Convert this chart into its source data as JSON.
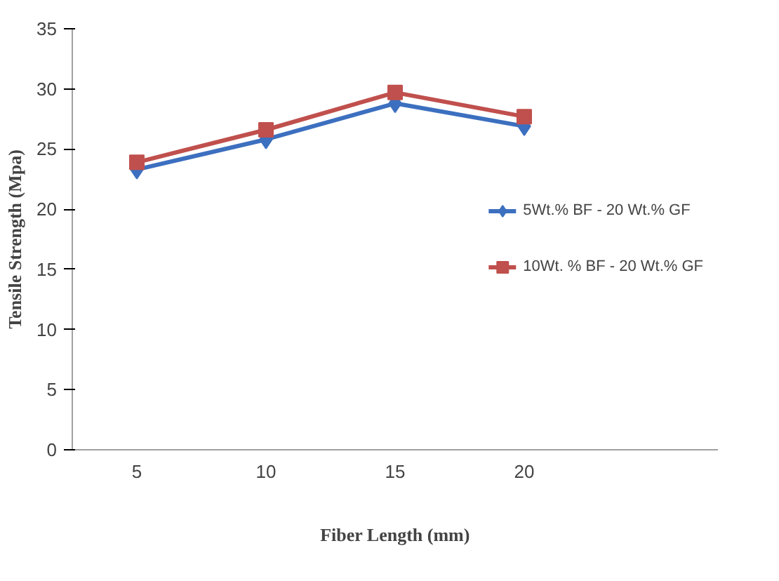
{
  "chart_data": {
    "type": "line",
    "xlabel": "Fiber Length (mm)",
    "ylabel": "Tensile Strength (Mpa)",
    "categories": [
      "5",
      "10",
      "15",
      "20",
      null
    ],
    "ylim": [
      0,
      35
    ],
    "yticks": [
      0,
      5,
      10,
      15,
      20,
      25,
      30,
      35
    ],
    "grid": false,
    "legend": "right",
    "series": [
      {
        "name": "5Wt.% BF - 20 Wt.% GF",
        "color": "#3c6fbf",
        "marker": "diamond",
        "values": [
          23.3,
          25.8,
          28.8,
          26.9,
          null
        ]
      },
      {
        "name": "10Wt. % BF - 20 Wt.% GF",
        "color": "#c0504d",
        "marker": "square",
        "values": [
          23.9,
          26.6,
          29.7,
          27.7,
          null
        ]
      }
    ]
  }
}
